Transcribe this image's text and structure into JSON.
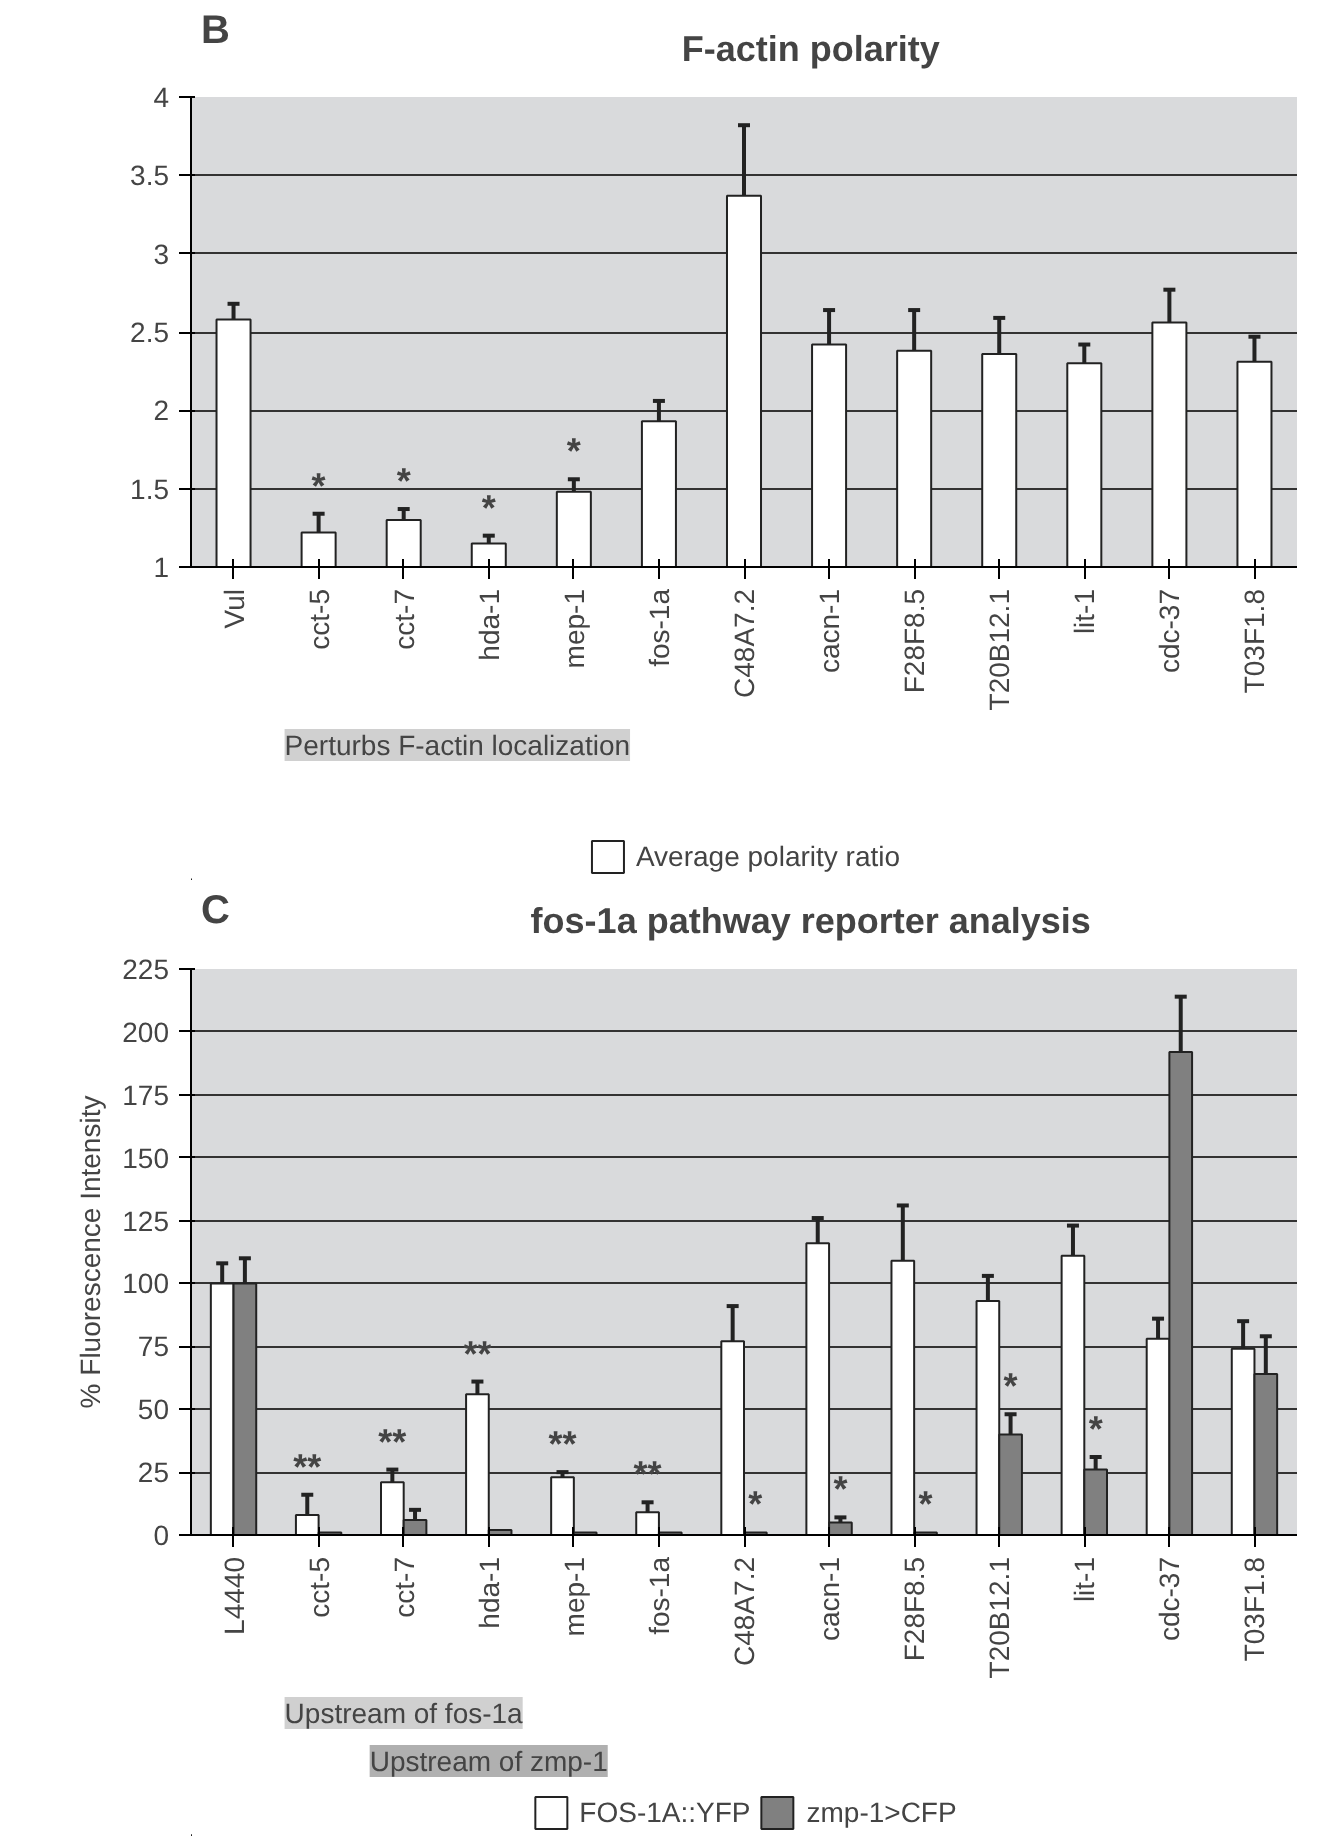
{
  "chart_data": [
    {
      "type": "bar",
      "title": "F-actin polarity",
      "categories": [
        "Vul",
        "cct-5",
        "cct-7",
        "hda-1",
        "mep-1",
        "fos-1a",
        "C48A7.2",
        "cacn-1",
        "F28F8.5",
        "T20B12.1",
        "lit-1",
        "cdc-37",
        "T03F1.8"
      ],
      "series": [
        {
          "name": "Average polarity ratio",
          "color": "#ffffff",
          "values": [
            2.58,
            1.22,
            1.3,
            1.15,
            1.48,
            1.93,
            3.37,
            2.42,
            2.38,
            2.36,
            2.3,
            2.56,
            2.31
          ],
          "errors": [
            0.1,
            0.12,
            0.07,
            0.05,
            0.08,
            0.13,
            0.45,
            0.22,
            0.26,
            0.23,
            0.12,
            0.21,
            0.16
          ]
        }
      ],
      "ylim": [
        1,
        4
      ],
      "yticks": [
        1,
        1.5,
        2,
        2.5,
        3,
        3.5,
        4
      ],
      "grid": "y",
      "legend": "bottom",
      "annotations": [
        "B",
        "Perturbs F-actin localization",
        {
          "text": "*",
          "x": "cct-5",
          "y": 1.22
        },
        {
          "text": "*",
          "x": "cct-7",
          "y": 1.3
        },
        {
          "text": "*",
          "x": "hda-1",
          "y": 1.15
        },
        {
          "text": "*",
          "x": "mep-1",
          "y": 1.48
        }
      ]
    },
    {
      "type": "bar",
      "title": "fos-1a pathway reporter analysis",
      "ylabel": "% Fluorescence Intensity",
      "categories": [
        "L4440",
        "cct-5",
        "cct-7",
        "hda-1",
        "mep-1",
        "fos-1a",
        "C48A7.2",
        "cacn-1",
        "F28F8.5",
        "T20B12.1",
        "lit-1",
        "cdc-37",
        "T03F1.8"
      ],
      "series": [
        {
          "name": "FOS-1A::YFP",
          "color": "#ffffff",
          "values": [
            100,
            8,
            21,
            56,
            23,
            9,
            77,
            116,
            109,
            93,
            111,
            78,
            74
          ],
          "errors": [
            8,
            8,
            5,
            5,
            2,
            4,
            14,
            10,
            22,
            10,
            12,
            8,
            11
          ]
        },
        {
          "name": "zmp-1>CFP",
          "color": "#808080",
          "values": [
            100,
            1,
            6,
            2,
            1,
            1,
            1,
            5,
            1,
            40,
            26,
            192,
            64
          ],
          "errors": [
            10,
            null,
            4,
            null,
            null,
            null,
            null,
            2,
            null,
            8,
            5,
            22,
            15
          ]
        }
      ],
      "ylim": [
        0,
        225
      ],
      "yticks": [
        0,
        25,
        50,
        75,
        100,
        125,
        150,
        175,
        200,
        225
      ],
      "grid": "y",
      "legend": "bottom",
      "annotations": [
        "C",
        "Upstream of fos-1a",
        "Upstream of zmp-1",
        {
          "text": "**",
          "x": "cct-5",
          "y": 8
        },
        {
          "text": "**",
          "x": "cct-7",
          "y": 21
        },
        {
          "text": "**",
          "x": "hda-1",
          "y": 56
        },
        {
          "text": "**",
          "x": "mep-1",
          "y": 23
        },
        {
          "text": "**",
          "x": "fos-1a",
          "y": 9
        },
        {
          "text": "*",
          "x": "C48A7.2",
          "y": 1
        },
        {
          "text": "*",
          "x": "cacn-1",
          "y": 5
        },
        {
          "text": "*",
          "x": "F28F8.5",
          "y": 1
        },
        {
          "text": "*",
          "x": "T20B12.1",
          "y": 40
        },
        {
          "text": "*",
          "x": "lit-1",
          "y": 26
        }
      ]
    }
  ]
}
